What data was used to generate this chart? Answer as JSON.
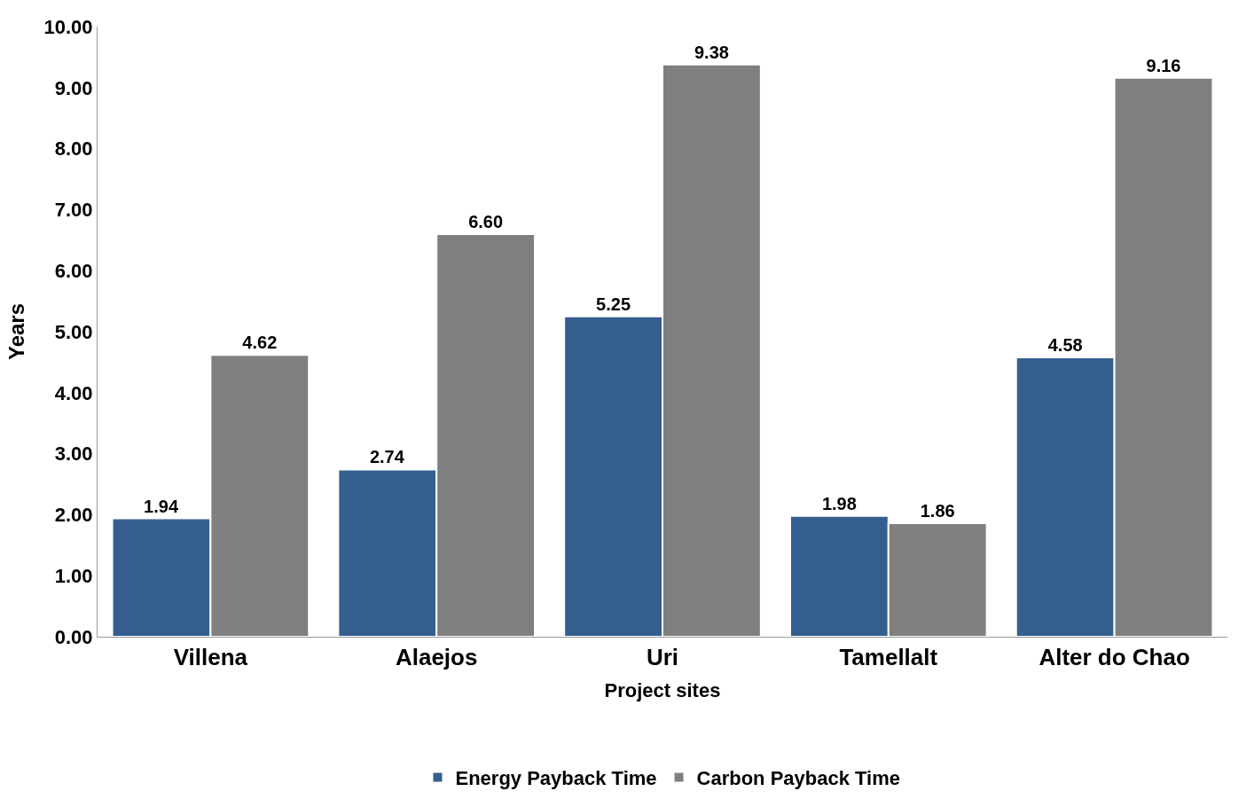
{
  "chart_data": {
    "type": "bar",
    "xlabel": "Project sites",
    "ylabel": "Years",
    "categories": [
      "Villena",
      "Alaejos",
      "Uri",
      "Tamellalt",
      "Alter do Chao"
    ],
    "series": [
      {
        "name": "Energy Payback Time",
        "color": "#355f8f",
        "values": [
          1.94,
          2.74,
          5.25,
          1.98,
          4.58
        ]
      },
      {
        "name": "Carbon Payback Time",
        "color": "#7f7f7f",
        "values": [
          4.62,
          6.6,
          9.38,
          1.86,
          9.16
        ]
      }
    ],
    "value_labels": [
      [
        "1.94",
        "2.74",
        "5.25",
        "1.98",
        "4.58"
      ],
      [
        "4.62",
        "6.60",
        "9.38",
        "1.86",
        "9.16"
      ]
    ],
    "ylim": [
      0,
      10
    ],
    "yticks": [
      {
        "value": 0,
        "label": "0.00"
      },
      {
        "value": 1,
        "label": "1.00"
      },
      {
        "value": 2,
        "label": "2.00"
      },
      {
        "value": 3,
        "label": "3.00"
      },
      {
        "value": 4,
        "label": "4.00"
      },
      {
        "value": 5,
        "label": "5.00"
      },
      {
        "value": 6,
        "label": "6.00"
      },
      {
        "value": 7,
        "label": "7.00"
      },
      {
        "value": 8,
        "label": "8.00"
      },
      {
        "value": 9,
        "label": "9.00"
      },
      {
        "value": 10,
        "label": "10.00"
      }
    ],
    "legend": "bottom"
  }
}
